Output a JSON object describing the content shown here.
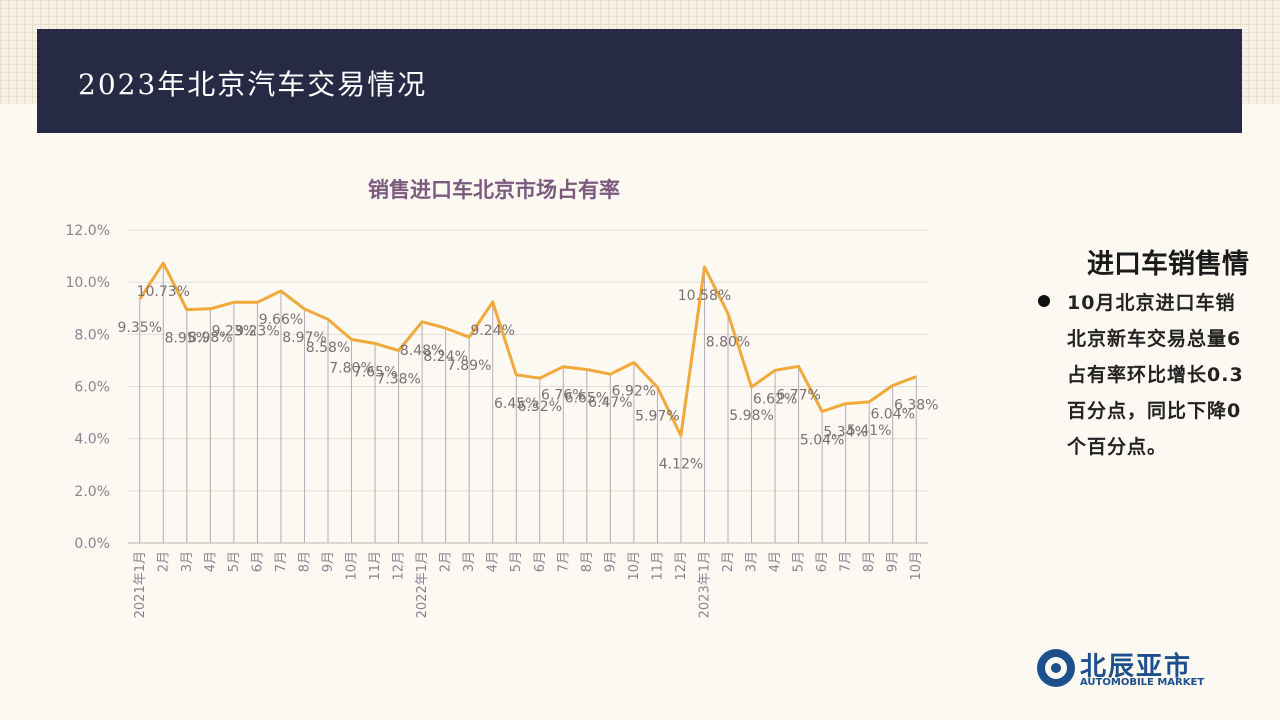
{
  "header": {
    "title": "2023年北京汽车交易情况"
  },
  "side": {
    "heading": "进口车销售情",
    "lines": [
      "10月北京进口车销",
      "北京新车交易总量6",
      "占有率环比增长0.3",
      "百分点，同比下降0",
      "个百分点。"
    ]
  },
  "logo": {
    "cn": "北辰亚市",
    "en": "AUTOMOBILE MARKET",
    "emblem": "wheel-logo-icon"
  },
  "colors": {
    "title_bar": "#262a45",
    "line": "#f0a93b",
    "title_text": "#7b5a7e",
    "logo": "#1d4f8c"
  },
  "chart_data": {
    "type": "line",
    "title": "销售进口车北京市场占有率",
    "ylim": [
      0,
      12
    ],
    "yticks": [
      "0.0%",
      "2.0%",
      "4.0%",
      "6.0%",
      "8.0%",
      "10.0%",
      "12.0%"
    ],
    "grid": true,
    "categories": [
      "2021年1月",
      "2月",
      "3月",
      "4月",
      "5月",
      "6月",
      "7月",
      "8月",
      "9月",
      "10月",
      "11月",
      "12月",
      "2022年1月",
      "2月",
      "3月",
      "4月",
      "5月",
      "6月",
      "7月",
      "8月",
      "9月",
      "10月",
      "11月",
      "12月",
      "2023年1月",
      "2月",
      "3月",
      "4月",
      "5月",
      "6月",
      "7月",
      "8月",
      "9月",
      "10月"
    ],
    "values": [
      9.35,
      10.73,
      8.95,
      8.98,
      9.23,
      9.23,
      9.66,
      8.97,
      8.58,
      7.8,
      7.65,
      7.38,
      8.48,
      8.24,
      7.89,
      9.24,
      6.45,
      6.32,
      6.76,
      6.65,
      6.47,
      6.92,
      5.97,
      4.12,
      10.58,
      8.8,
      5.98,
      6.62,
      6.77,
      5.04,
      5.34,
      5.41,
      6.04,
      6.38
    ],
    "labels": [
      "9.35%",
      "10.73%",
      "8.95%",
      "8.98%",
      "9.23%",
      "9.23%",
      "9.66%",
      "8.97%",
      "8.58%",
      "7.80%",
      "7.65%",
      "7.38%",
      "8.48%",
      "8.24%",
      "7.89%",
      "9.24%",
      "6.45%",
      "6.32%",
      "6.76%",
      "6.65%",
      "6.47%",
      "6.92%",
      "5.97%",
      "4.12%",
      "10.58%",
      "8.80%",
      "5.98%",
      "6.62%",
      "6.77%",
      "5.04%",
      "5.34%",
      "5.41%",
      "6.04%",
      "6.38%"
    ]
  }
}
